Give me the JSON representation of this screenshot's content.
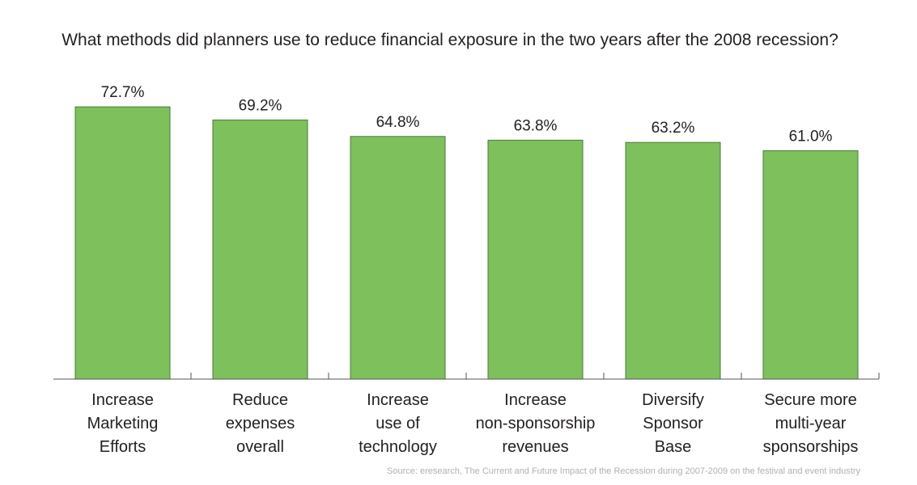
{
  "chart_data": {
    "type": "bar",
    "title": "What methods did planners use to reduce financial exposure in the two years after the 2008 recession?",
    "categories": [
      [
        "Increase",
        "Marketing",
        "Efforts"
      ],
      [
        "Reduce",
        "expenses",
        "overall"
      ],
      [
        "Increase",
        "use of",
        "technology"
      ],
      [
        "Increase",
        "non-sponsorship",
        "revenues"
      ],
      [
        "Diversify",
        "Sponsor",
        "Base"
      ],
      [
        "Secure more",
        "multi-year",
        "sponsorships"
      ]
    ],
    "values": [
      72.7,
      69.2,
      64.8,
      63.8,
      63.2,
      61.0
    ],
    "value_labels": [
      "72.7%",
      "69.2%",
      "64.8%",
      "63.8%",
      "63.2%",
      "61.0%"
    ],
    "colors": {
      "bar": "#7dc05c",
      "bar_edge": "#4d7a3a",
      "axis": "#555555"
    },
    "grid": false,
    "source": "Source: eresearch, The Current and Future Impact of the Recession during 2007-2009 on the festival and event industry"
  }
}
